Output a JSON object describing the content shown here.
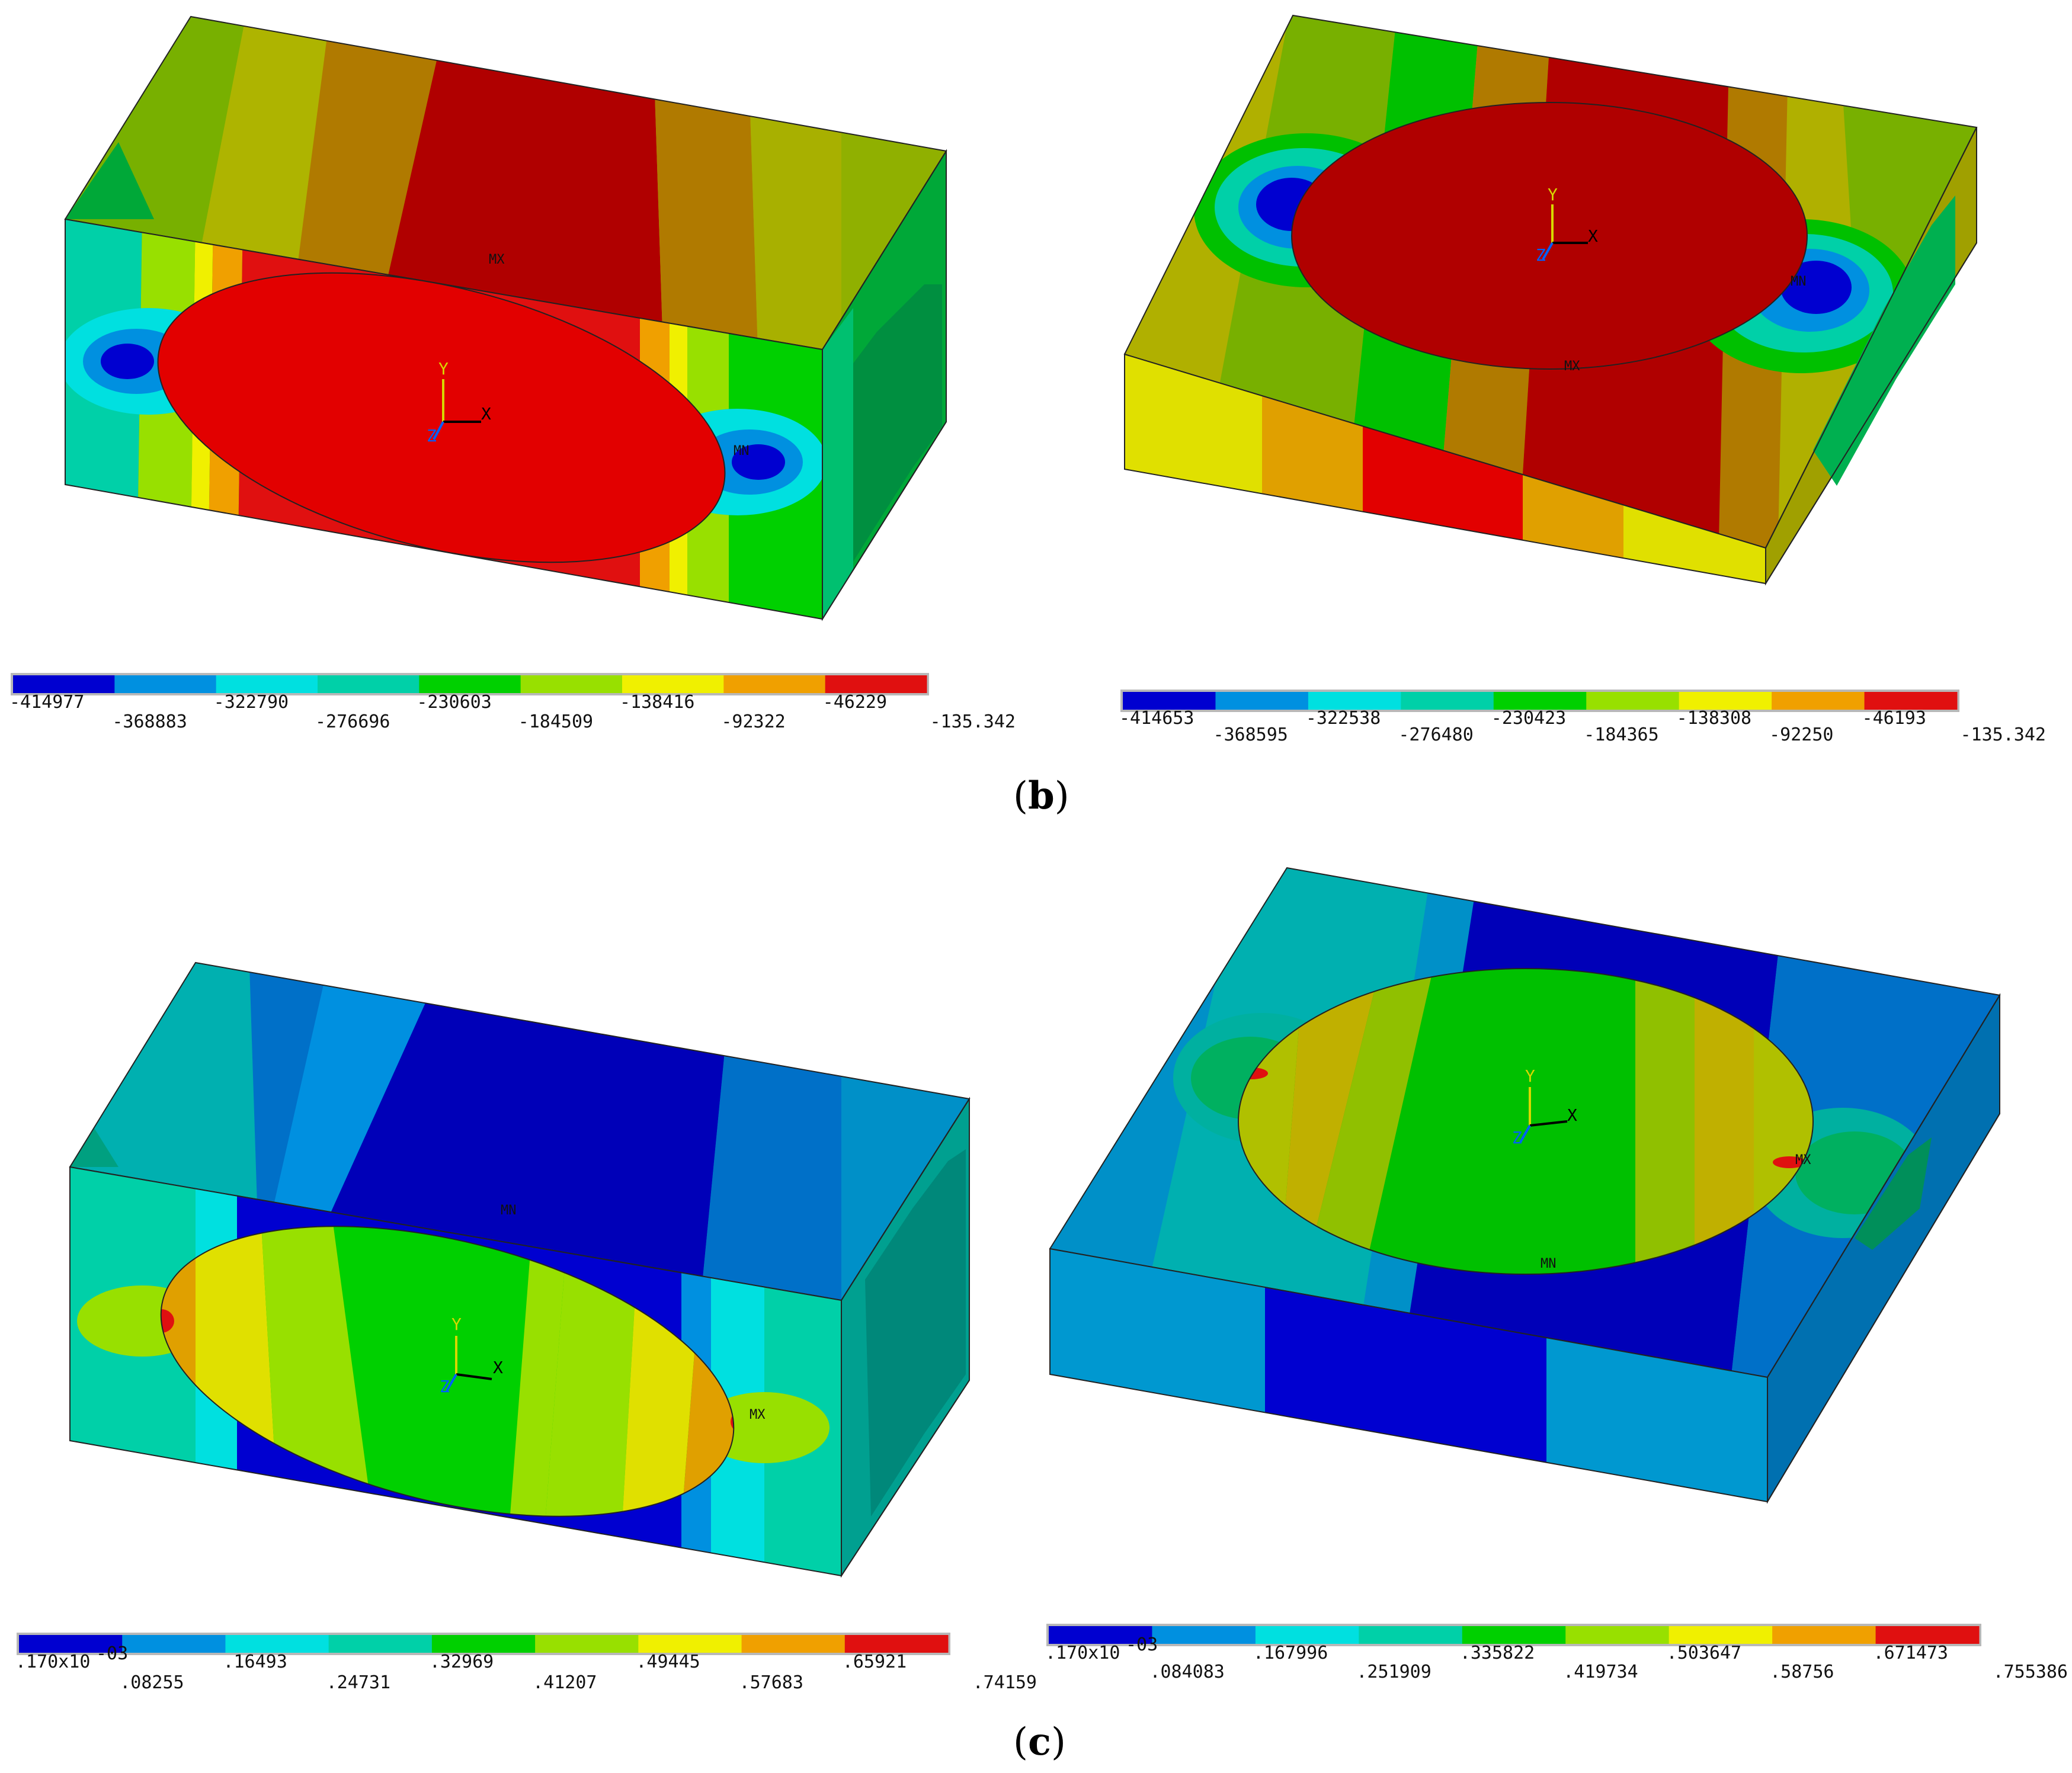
{
  "captions": {
    "b": "b",
    "c": "c"
  },
  "panels": [
    {
      "id": "b-left",
      "markers": {
        "top": "MX",
        "right": "MN"
      },
      "axes": {
        "x": "X",
        "y": "Y",
        "z": "Z"
      },
      "legend": {
        "colors": [
          "#0000d0",
          "#0090e0",
          "#00e0e0",
          "#00d0a8",
          "#00d000",
          "#98e000",
          "#f0f000",
          "#f0a000",
          "#e01010"
        ],
        "labels": [
          "-414977",
          "-368883",
          "-322790",
          "-276696",
          "-230603",
          "-184509",
          "-138416",
          "-92322",
          "-46229",
          "-135.342"
        ]
      }
    },
    {
      "id": "b-right",
      "markers": {
        "right": "MN",
        "bottom": "MX"
      },
      "axes": {
        "x": "X",
        "y": "Y",
        "z": "Z"
      },
      "legend": {
        "colors": [
          "#0000d0",
          "#0090e0",
          "#00e0e0",
          "#00d0a8",
          "#00d000",
          "#98e000",
          "#f0f000",
          "#f0a000",
          "#e01010"
        ],
        "labels": [
          "-414653",
          "-368595",
          "-322538",
          "-276480",
          "-230423",
          "-184365",
          "-138308",
          "-92250",
          "-46193",
          "-135.342"
        ]
      }
    },
    {
      "id": "c-left",
      "markers": {
        "top": "MN",
        "right": "MX"
      },
      "axes": {
        "x": "X",
        "y": "Y",
        "z": "Z"
      },
      "legend": {
        "colors": [
          "#0000d0",
          "#0090e0",
          "#00e0e0",
          "#00d0a8",
          "#00d000",
          "#98e000",
          "#f0f000",
          "#f0a000",
          "#e01010"
        ],
        "labels": [
          ".170x10",
          ".08255",
          ".16493",
          ".24731",
          ".32969",
          ".41207",
          ".49445",
          ".57683",
          ".65921",
          ".74159"
        ],
        "exponent": "-03"
      }
    },
    {
      "id": "c-right",
      "markers": {
        "right": "MX",
        "bottom": "MN"
      },
      "axes": {
        "x": "X",
        "y": "Y",
        "z": "Z"
      },
      "legend": {
        "colors": [
          "#0000d0",
          "#0090e0",
          "#00e0e0",
          "#00d0a8",
          "#00d000",
          "#98e000",
          "#f0f000",
          "#f0a000",
          "#e01010"
        ],
        "labels": [
          ".170x10",
          ".084083",
          ".167996",
          ".251909",
          ".335822",
          ".419734",
          ".503647",
          ".58756",
          ".671473",
          ".755386"
        ],
        "exponent": "-03"
      }
    }
  ]
}
